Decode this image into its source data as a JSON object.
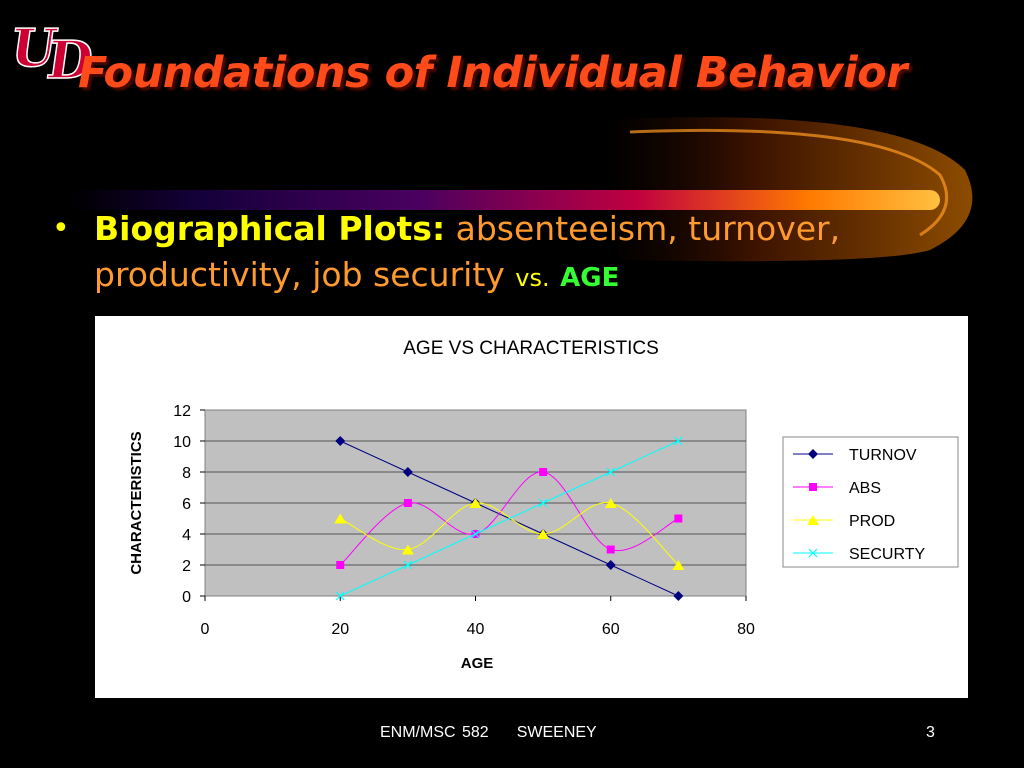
{
  "logo": {
    "text": "UD"
  },
  "title": "Foundations of Individual Behavior",
  "bullet": {
    "lead": "Biographical Plots:",
    "topics_line1": "absenteeism, turnover,",
    "topics_line2": "productivity, job security",
    "vs": "vs.",
    "age": "AGE"
  },
  "chart_data": {
    "type": "line",
    "title": "AGE VS CHARACTERISTICS",
    "xlabel": "AGE",
    "ylabel": "CHARACTERISTICS",
    "xlim": [
      0,
      80
    ],
    "ylim": [
      0,
      12
    ],
    "xticks": [
      "0",
      "20",
      "40",
      "60",
      "80"
    ],
    "yticks": [
      "0",
      "2",
      "4",
      "6",
      "8",
      "10",
      "12"
    ],
    "grid": true,
    "legend": "right",
    "x": [
      20,
      30,
      40,
      50,
      60,
      70
    ],
    "series": [
      {
        "name": "TURNOV",
        "values": [
          10,
          8,
          6,
          4,
          2,
          0
        ],
        "color": "#000080",
        "marker": "diamond",
        "smooth": false
      },
      {
        "name": "ABS",
        "values": [
          2,
          6,
          4,
          8,
          3,
          5
        ],
        "color": "#ff00ff",
        "marker": "square",
        "smooth": true
      },
      {
        "name": "PROD",
        "values": [
          5,
          3,
          6,
          4,
          6,
          2
        ],
        "color": "#ffff00",
        "marker": "triangle",
        "smooth": true
      },
      {
        "name": "SECURTY",
        "values": [
          0,
          2,
          4,
          6,
          8,
          10
        ],
        "color": "#00ffff",
        "marker": "x",
        "smooth": false
      }
    ]
  },
  "footer": {
    "course": "ENM/MSC 582",
    "author": "SWEENEY",
    "page": "3"
  },
  "colors": {
    "background": "#000000",
    "title": "#ff4a1a",
    "bullet_lead": "#ffff00",
    "bullet_topics": "#ff9a2e",
    "age": "#33ff33"
  }
}
